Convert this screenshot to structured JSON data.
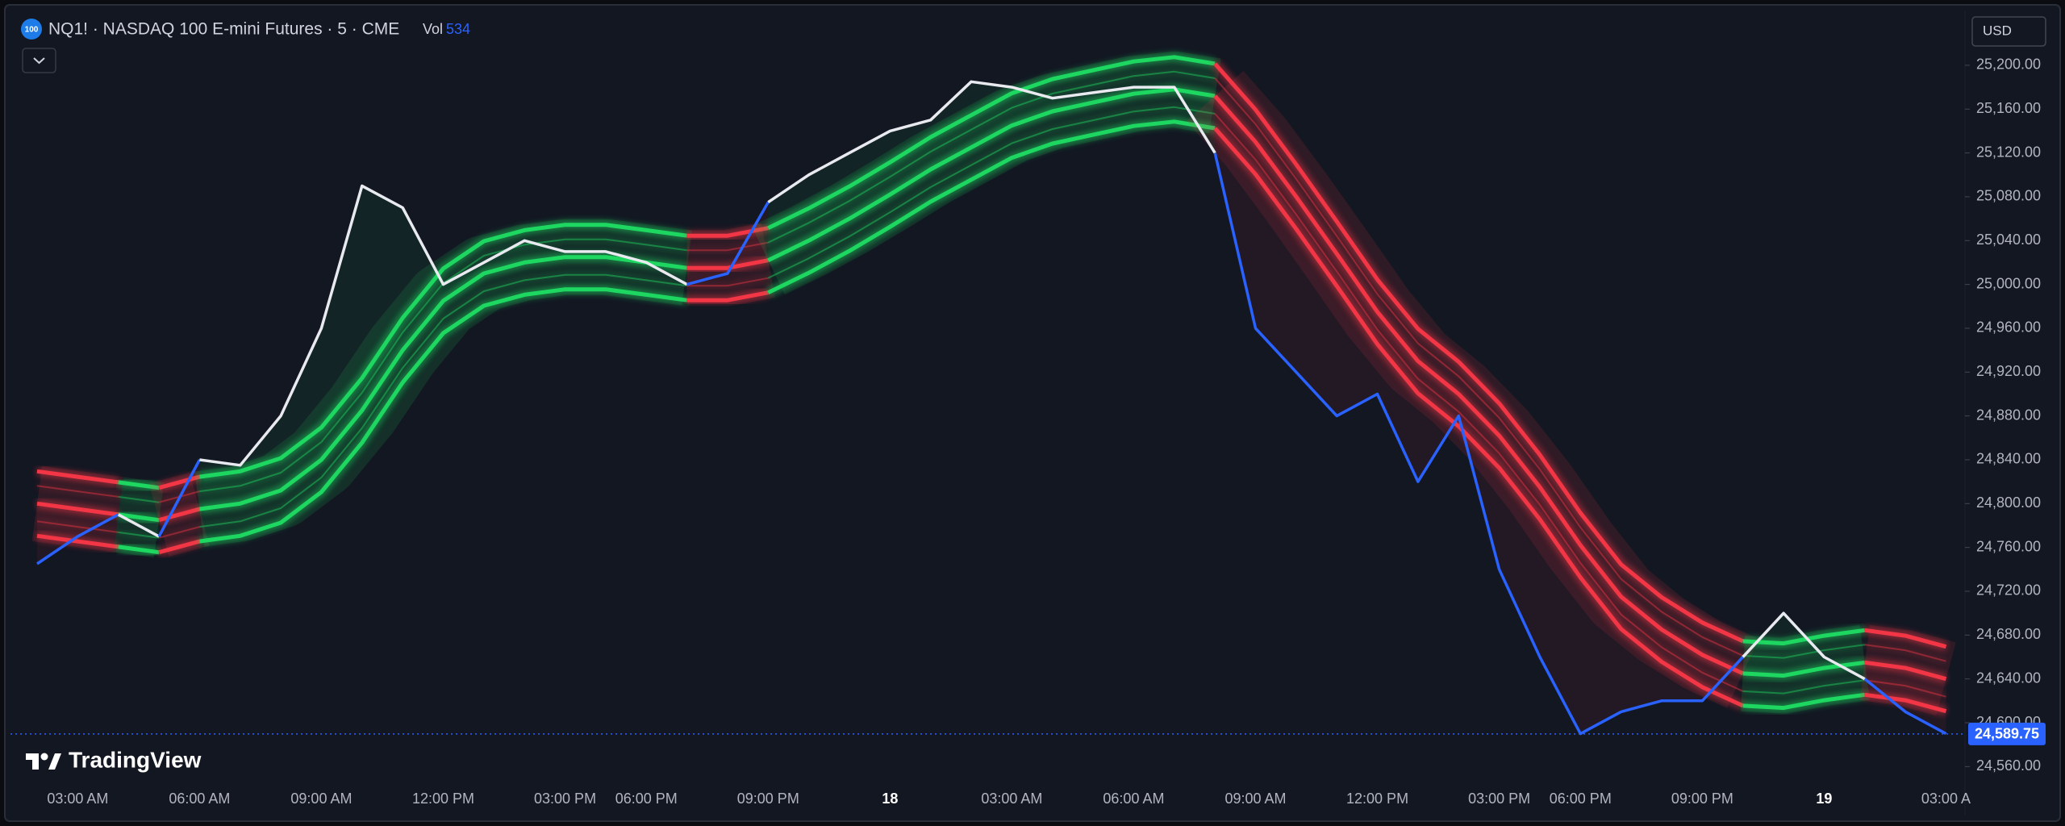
{
  "header": {
    "icon": "100",
    "title": "NQ1! · NASDAQ 100 E-mini Futures · 5 · CME",
    "volume_label": "Vol",
    "volume": 534
  },
  "currency": "USD",
  "watermark": "TradingView",
  "chart_data": {
    "type": "line",
    "categories": [
      null,
      "03:00 AM",
      null,
      null,
      "06:00 AM",
      null,
      null,
      "09:00 AM",
      null,
      null,
      "12:00 PM",
      null,
      null,
      "03:00 PM",
      null,
      "06:00 PM",
      null,
      null,
      "09:00 PM",
      null,
      null,
      "18",
      null,
      null,
      "03:00 AM",
      null,
      null,
      "06:00 AM",
      null,
      null,
      "09:00 AM",
      null,
      null,
      "12:00 PM",
      null,
      null,
      "03:00 PM",
      null,
      "06:00 PM",
      null,
      null,
      "09:00 PM",
      null,
      null,
      "19",
      null,
      null,
      "03:00 A"
    ],
    "series": [
      {
        "values": [
          24745,
          24770,
          24790,
          24770,
          24840,
          24835,
          24880,
          24960,
          25090,
          25070,
          25000,
          25020,
          25040,
          25030,
          25030,
          25020,
          25000,
          25010,
          25075,
          25100,
          25120,
          25140,
          25150,
          25185,
          25180,
          25170,
          25175,
          25180,
          25180,
          25120,
          24960,
          24920,
          24880,
          24900,
          24820,
          24880,
          24740,
          24660,
          24590,
          24610,
          24620,
          24620,
          24660,
          24700,
          24660,
          24640,
          24610,
          24590
        ],
        "up_color": "#e8eaf0",
        "down_color": "#2962ff"
      },
      {
        "values": [
          24800,
          24795,
          24790,
          24785,
          24795,
          24800,
          24812,
          24840,
          24885,
          24940,
          24985,
          25010,
          25020,
          25025,
          25025,
          25020,
          25015,
          25015,
          25022,
          25040,
          25060,
          25082,
          25105,
          25125,
          25145,
          25158,
          25166,
          25174,
          25178,
          25172,
          25130,
          25080,
          25028,
          24975,
          24930,
          24900,
          24862,
          24815,
          24762,
          24715,
          24685,
          24662,
          24645,
          24643,
          24650,
          24655,
          24650,
          24640
        ],
        "up_color": "#1ed760",
        "down_color": "#f23645"
      }
    ],
    "ylim": [
      24547,
      25250
    ],
    "yticks": [
      {
        "value": 24560,
        "label": "24,560.00"
      },
      {
        "value": 24600,
        "label": "24,600.00"
      },
      {
        "value": 24640,
        "label": "24,640.00"
      },
      {
        "value": 24680,
        "label": "24,680.00"
      },
      {
        "value": 24720,
        "label": "24,720.00"
      },
      {
        "value": 24760,
        "label": "24,760.00"
      },
      {
        "value": 24800,
        "label": "24,800.00"
      },
      {
        "value": 24840,
        "label": "24,840.00"
      },
      {
        "value": 24880,
        "label": "24,880.00"
      },
      {
        "value": 24920,
        "label": "24,920.00"
      },
      {
        "value": 24960,
        "label": "24,960.00"
      },
      {
        "value": 25000,
        "label": "25,000.00"
      },
      {
        "value": 25040,
        "label": "25,040.00"
      },
      {
        "value": 25080,
        "label": "25,080.00"
      },
      {
        "value": 25120,
        "label": "25,120.00"
      },
      {
        "value": 25160,
        "label": "25,160.00"
      },
      {
        "value": 25200,
        "label": "25,200.00"
      }
    ],
    "last_price": {
      "value": 24589.75,
      "label": "24,589.75"
    },
    "last_price_color": "#2962ff",
    "grid": false
  }
}
